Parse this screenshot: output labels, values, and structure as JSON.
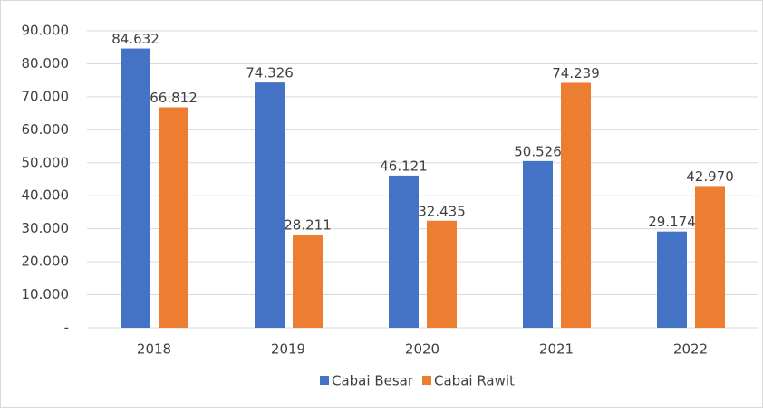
{
  "chart_data": {
    "type": "bar",
    "categories": [
      "2018",
      "2019",
      "2020",
      "2021",
      "2022"
    ],
    "series": [
      {
        "name": "Cabai Besar",
        "color": "#4472c4",
        "values": [
          84632,
          74326,
          46121,
          50526,
          29174
        ],
        "value_labels": [
          "84.632",
          "74.326",
          "46.121",
          "50.526",
          "29.174"
        ]
      },
      {
        "name": "Cabai Rawit",
        "color": "#ed7d31",
        "values": [
          66812,
          28211,
          32435,
          74239,
          42970
        ],
        "value_labels": [
          "66.812",
          "28.211",
          "32.435",
          "74.239",
          "42.970"
        ]
      }
    ],
    "ylim": [
      0,
      90000
    ],
    "yticks": [
      {
        "value": 0,
        "label": "-"
      },
      {
        "value": 10000,
        "label": "10.000"
      },
      {
        "value": 20000,
        "label": "20.000"
      },
      {
        "value": 30000,
        "label": "30.000"
      },
      {
        "value": 40000,
        "label": "40.000"
      },
      {
        "value": 50000,
        "label": "50.000"
      },
      {
        "value": 60000,
        "label": "60.000"
      },
      {
        "value": 70000,
        "label": "70.000"
      },
      {
        "value": 80000,
        "label": "80.000"
      },
      {
        "value": 90000,
        "label": "90.000"
      }
    ],
    "grid": true,
    "legend": "bottom"
  }
}
